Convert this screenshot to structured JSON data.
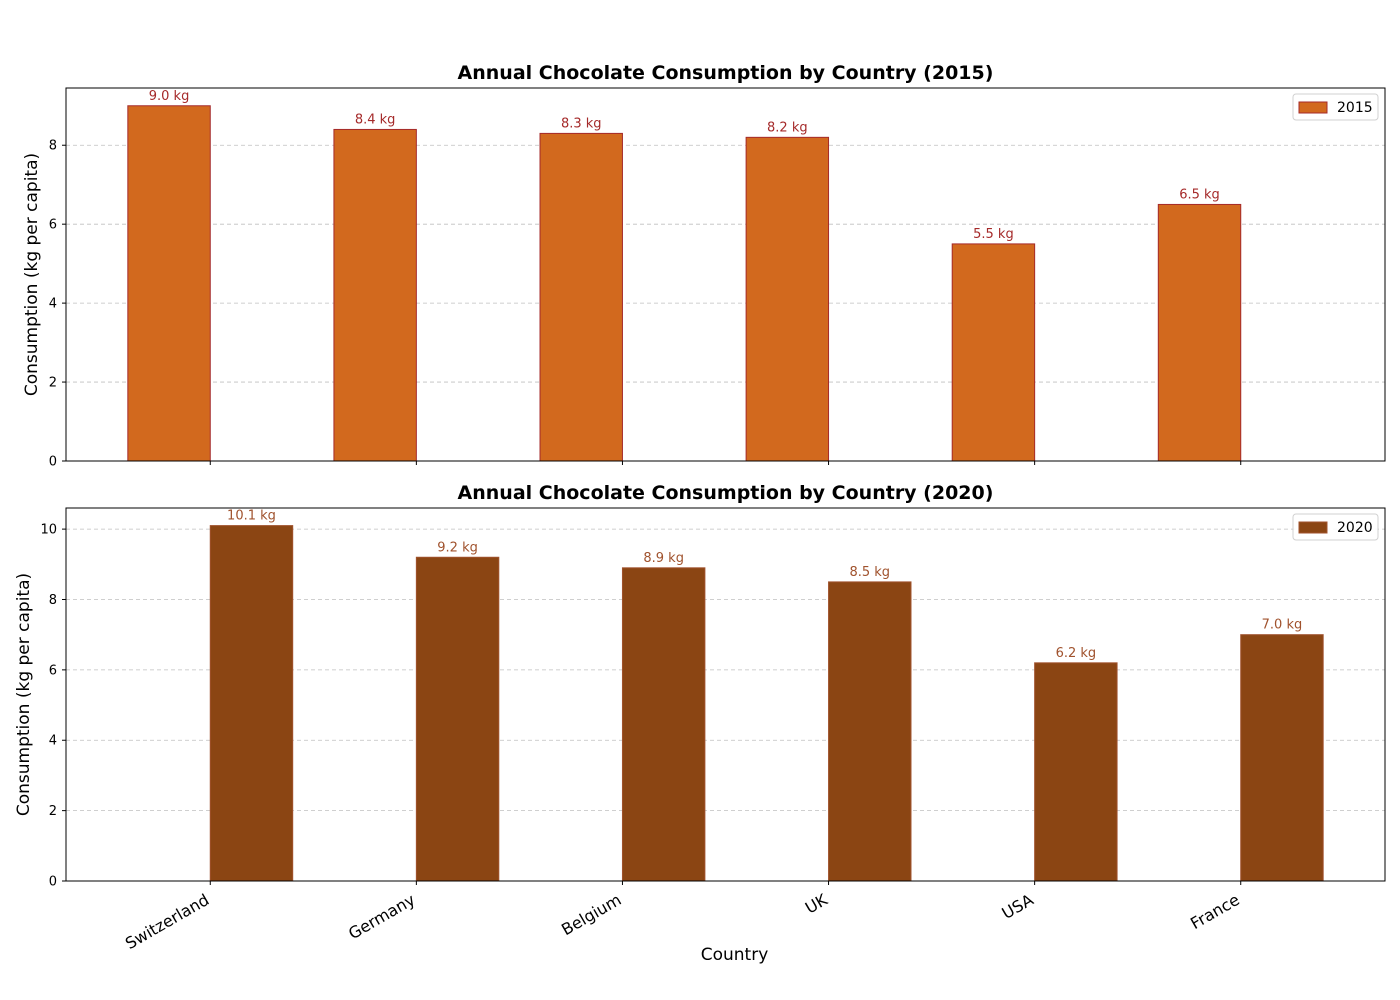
{
  "chart_data": [
    {
      "type": "bar",
      "title": "Annual Chocolate Consumption by Country (2015)",
      "xlabel": "",
      "ylabel": "Consumption (kg per capita)",
      "categories": [
        "Switzerland",
        "Germany",
        "Belgium",
        "UK",
        "USA",
        "France"
      ],
      "series": [
        {
          "name": "2015",
          "values": [
            9.0,
            8.4,
            8.3,
            8.2,
            5.5,
            6.5
          ],
          "labels": [
            "9.0 kg",
            "8.4 kg",
            "8.3 kg",
            "8.2 kg",
            "5.5 kg",
            "6.5 kg"
          ],
          "color": "#D2691E",
          "edge_color": "#A52A2A",
          "label_color": "#A52A2A"
        }
      ],
      "ylim": [
        0,
        9.45
      ],
      "yticks": [
        "0",
        "2",
        "4",
        "6",
        "8"
      ],
      "grid": "y-dashed",
      "legend": "top-right",
      "show_x_tick_labels": false
    },
    {
      "type": "bar",
      "title": "Annual Chocolate Consumption by Country (2020)",
      "xlabel": "Country",
      "ylabel": "Consumption (kg per capita)",
      "categories": [
        "Switzerland",
        "Germany",
        "Belgium",
        "UK",
        "USA",
        "France"
      ],
      "series": [
        {
          "name": "2020",
          "values": [
            10.1,
            9.2,
            8.9,
            8.5,
            6.2,
            7.0
          ],
          "labels": [
            "10.1 kg",
            "9.2 kg",
            "8.9 kg",
            "8.5 kg",
            "6.2 kg",
            "7.0 kg"
          ],
          "color": "#8B4513",
          "edge_color": "#A0522D",
          "label_color": "#A0522D"
        }
      ],
      "ylim": [
        0,
        10.6
      ],
      "yticks": [
        "0",
        "2",
        "4",
        "6",
        "8",
        "10"
      ],
      "grid": "y-dashed",
      "legend": "top-right",
      "show_x_tick_labels": true
    }
  ]
}
